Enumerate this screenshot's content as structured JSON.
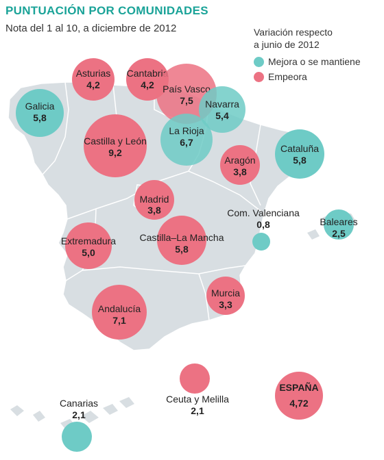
{
  "header": {
    "title": "PUNTUACIÓN POR COMUNIDADES",
    "subtitle": "Nota del 1 al 10, a diciembre de 2012"
  },
  "legend": {
    "title_line1": "Variación respecto",
    "title_line2": "a junio de 2012",
    "items": [
      {
        "label": "Mejora o se mantiene",
        "color": "#6ecbc6"
      },
      {
        "label": "Empeora",
        "color": "#ec7283"
      }
    ]
  },
  "colors": {
    "mejora": "#6ecbc6",
    "empeora": "#ec7283",
    "land": "#d8dee2",
    "border": "#ffffff",
    "title": "#1aa398"
  },
  "regions": [
    {
      "name": "Asturias",
      "value": "4,2",
      "trend": "empeora"
    },
    {
      "name": "Cantabria",
      "value": "4,2",
      "trend": "empeora"
    },
    {
      "name": "País Vasco",
      "value": "7,5",
      "trend": "empeora"
    },
    {
      "name": "Galicia",
      "value": "5,8",
      "trend": "mejora"
    },
    {
      "name": "Navarra",
      "value": "5,4",
      "trend": "mejora"
    },
    {
      "name": "La Rioja",
      "value": "6,7",
      "trend": "mejora"
    },
    {
      "name": "Castilla y León",
      "value": "9,2",
      "trend": "empeora"
    },
    {
      "name": "Cataluña",
      "value": "5,8",
      "trend": "mejora"
    },
    {
      "name": "Aragón",
      "value": "3,8",
      "trend": "empeora"
    },
    {
      "name": "Madrid",
      "value": "3,8",
      "trend": "empeora"
    },
    {
      "name": "Com. Valenciana",
      "value": "0,8",
      "trend": "mejora"
    },
    {
      "name": "Baleares",
      "value": "2,5",
      "trend": "mejora"
    },
    {
      "name": "Extremadura",
      "value": "5,0",
      "trend": "empeora"
    },
    {
      "name": "Castilla–La Mancha",
      "value": "5,8",
      "trend": "empeora"
    },
    {
      "name": "Andalucía",
      "value": "7,1",
      "trend": "empeora"
    },
    {
      "name": "Murcia",
      "value": "3,3",
      "trend": "empeora"
    },
    {
      "name": "Ceuta y Melilla",
      "value": "2,1",
      "trend": "empeora"
    },
    {
      "name": "Canarias",
      "value": "2,1",
      "trend": "mejora"
    }
  ],
  "spain": {
    "name": "ESPAÑA",
    "value": "4,72",
    "trend": "empeora"
  }
}
